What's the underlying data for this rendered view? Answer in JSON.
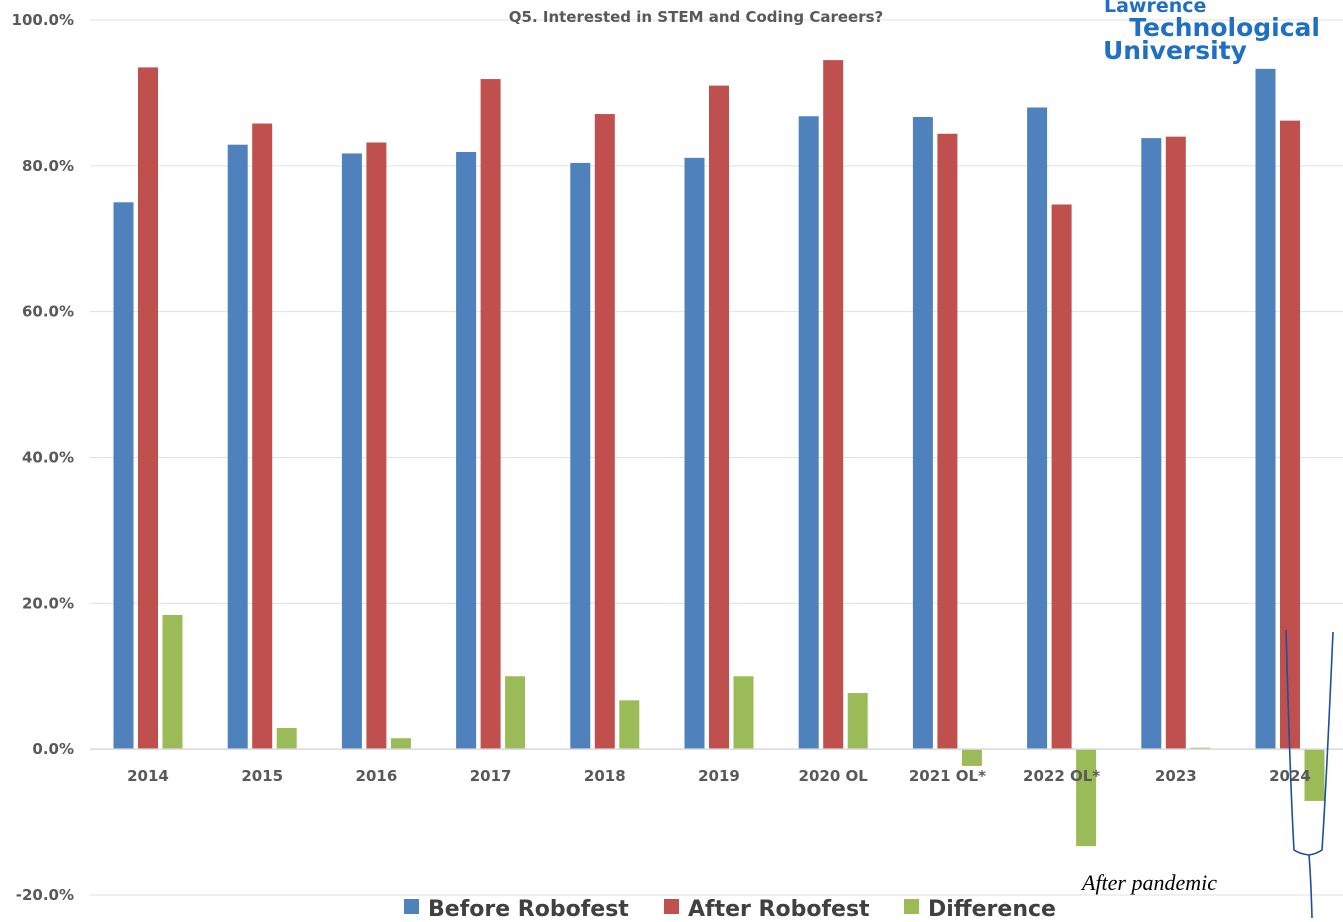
{
  "chart_data": {
    "type": "bar",
    "title": "Q5. Interested in STEM and Coding Careers?",
    "categories": [
      "2014",
      "2015",
      "2016",
      "2017",
      "2018",
      "2019",
      "2020 OL",
      "2021 OL*",
      "2022 OL*",
      "2023",
      "2024"
    ],
    "series": [
      {
        "name": "Before Robofest",
        "color": "#4f81bd",
        "values": [
          75.0,
          82.9,
          81.7,
          81.9,
          80.4,
          81.1,
          86.8,
          86.7,
          88.0,
          83.8,
          93.3
        ]
      },
      {
        "name": "After Robofest",
        "color": "#c0504d",
        "values": [
          93.5,
          85.8,
          83.2,
          91.9,
          87.1,
          91.0,
          94.5,
          84.4,
          74.7,
          84.0,
          86.2
        ]
      },
      {
        "name": "Difference",
        "color": "#9bbb59",
        "values": [
          18.4,
          2.9,
          1.5,
          10.0,
          6.7,
          10.0,
          7.7,
          -2.3,
          -13.3,
          0.2,
          -7.1
        ]
      }
    ],
    "yticks": [
      "100.0%",
      "80.0%",
      "60.0%",
      "40.0%",
      "20.0%",
      "0.0%",
      "-20.0%"
    ],
    "ylim": [
      -20,
      100
    ],
    "grid": true,
    "legend": "bottom"
  },
  "logo": {
    "line1": "Lawrence",
    "line2": "Technological",
    "line3": "University"
  },
  "annotation": "After pandemic"
}
